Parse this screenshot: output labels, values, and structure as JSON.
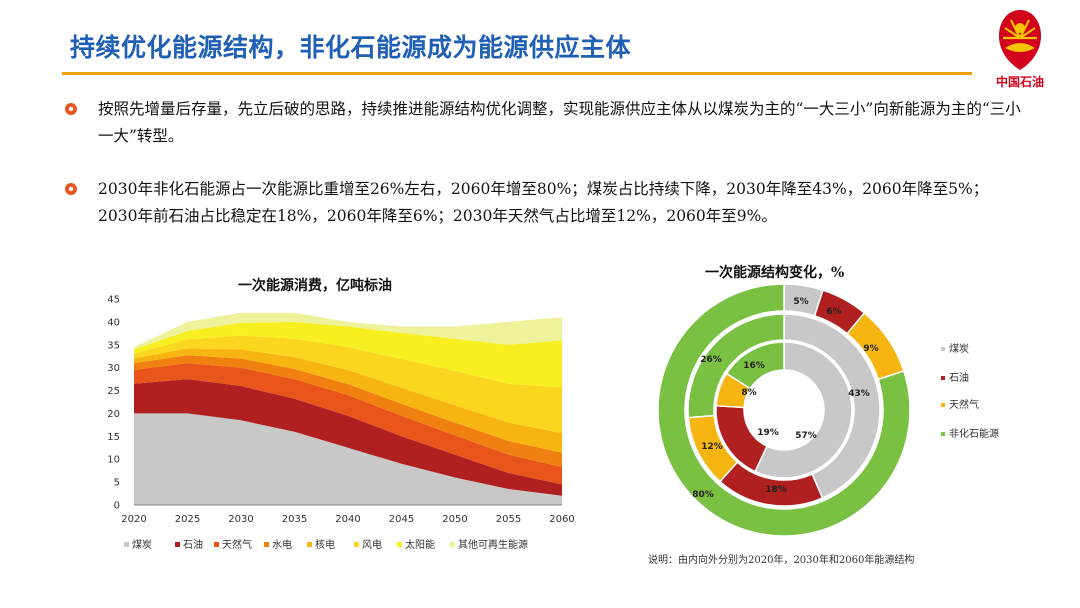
{
  "slide": {
    "title": "持续优化能源结构，非化石能源成为能源供应主体",
    "logo_text": "中国石油",
    "bullets": [
      {
        "text": "按照先增量后存量，先立后破的思路，持续推进能源结构优化调整，实现能源供应主体从以煤炭为主的“一大三小”向新能源为主的“三小一大”转型。"
      },
      {
        "text": "2030年非化石能源占一次能源比重增至26%左右，2060年增至80%；煤炭占比持续下降，2030年降至43%，2060年降至5%；2030年前石油占比稳定在18%，2060年降至6%；2030年天然气占比增至12%，2060年至9%。"
      }
    ],
    "note": "说明：由内向外分别为2020年，2030年和2060年能源结构",
    "colors": {
      "title": "#1f5fb4",
      "rule": "#f0a000",
      "logo": "#d2001b"
    }
  },
  "chart_data": [
    {
      "type": "area",
      "stacked": true,
      "title": "一次能源消费，亿吨标油",
      "x": [
        2020,
        2025,
        2030,
        2035,
        2040,
        2045,
        2050,
        2055,
        2060
      ],
      "ylim": [
        0,
        45
      ],
      "yticks": [
        0,
        5,
        10,
        15,
        20,
        25,
        30,
        35,
        40,
        45
      ],
      "legend_position": "bottom",
      "series": [
        {
          "name": "煤炭",
          "color": "#c8c8c8",
          "values": [
            20,
            20,
            18.5,
            16,
            12.5,
            9,
            6,
            3.5,
            2
          ]
        },
        {
          "name": "石油",
          "color": "#b02020",
          "values": [
            6.5,
            7.5,
            7.5,
            7.2,
            7,
            6,
            5,
            3.5,
            2.5
          ]
        },
        {
          "name": "天然气",
          "color": "#e8541a",
          "values": [
            3,
            3.5,
            4,
            4.3,
            4.5,
            4.5,
            4.2,
            4,
            3.8
          ]
        },
        {
          "name": "水电",
          "color": "#f08010",
          "values": [
            1.5,
            1.7,
            2,
            2.2,
            2.4,
            2.6,
            2.8,
            3,
            3.1
          ]
        },
        {
          "name": "核电",
          "color": "#f7b512",
          "values": [
            1,
            1.5,
            2,
            2.6,
            3.1,
            3.5,
            3.8,
            4,
            4.3
          ]
        },
        {
          "name": "风电",
          "color": "#fbd61e",
          "values": [
            1,
            2,
            3,
            4,
            5,
            6.3,
            7.5,
            8.5,
            10
          ]
        },
        {
          "name": "太阳能",
          "color": "#f8ef20",
          "values": [
            1,
            1.8,
            2.8,
            3.7,
            4.5,
            5.7,
            7,
            8.5,
            10.3
          ]
        },
        {
          "name": "其他可再生能源",
          "color": "#eef29a",
          "values": [
            0.5,
            2,
            2.2,
            2,
            1,
            1.4,
            2.7,
            5,
            5
          ]
        }
      ]
    },
    {
      "type": "pie",
      "subtype": "multi-ring-donut",
      "title": "一次能源结构变化，%",
      "legend_position": "right",
      "categories": [
        "煤炭",
        "石油",
        "天然气",
        "非化石能源"
      ],
      "colors": [
        "#c8c8c8",
        "#b02020",
        "#f7b512",
        "#7ac143"
      ],
      "rings": [
        {
          "name": "2020年",
          "values": [
            57,
            19,
            8,
            16
          ],
          "labels": [
            "57%",
            "19%",
            "8%",
            "16%"
          ]
        },
        {
          "name": "2030年",
          "values": [
            43,
            18,
            12,
            26
          ],
          "labels": [
            "43%",
            "18%",
            "12%",
            "26%"
          ]
        },
        {
          "name": "2060年",
          "values": [
            5,
            6,
            9,
            80
          ],
          "labels": [
            "5%",
            "6%",
            "9%",
            "80%"
          ]
        }
      ]
    }
  ]
}
